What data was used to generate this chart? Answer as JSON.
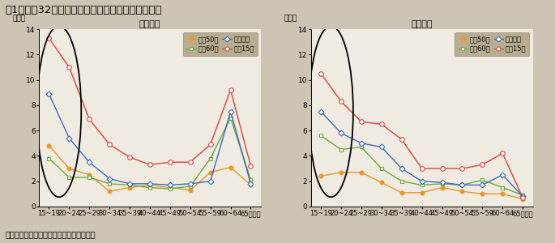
{
  "title": "第1－序－32図　年齢階級別完全失業率の年次推移",
  "note": "（備考）総務省「労働力調査」より作成。",
  "x_labels": [
    "15~19",
    "20~24",
    "25~29",
    "30~34",
    "35~39",
    "40~44",
    "45~49",
    "50~54",
    "55~59",
    "60~64",
    "65歳以上"
  ],
  "male_subtitle": "（男性）",
  "female_subtitle": "（女性）",
  "ylabel": "（％）",
  "ylim": [
    0,
    14
  ],
  "yticks": [
    0,
    2,
    4,
    6,
    8,
    10,
    12,
    14
  ],
  "legend_labels": [
    "昭和50年",
    "昭和60年",
    "平成７年",
    "平成15年"
  ],
  "male": {
    "showa50": [
      4.8,
      3.0,
      2.5,
      1.2,
      1.5,
      1.7,
      1.5,
      1.3,
      2.7,
      3.1,
      1.7
    ],
    "showa60": [
      3.8,
      2.3,
      2.3,
      1.8,
      1.7,
      1.5,
      1.4,
      1.6,
      3.8,
      7.0,
      2.1
    ],
    "heisei7": [
      8.9,
      5.4,
      3.5,
      2.2,
      1.8,
      1.8,
      1.7,
      1.8,
      2.0,
      7.5,
      1.8
    ],
    "heisei15": [
      13.3,
      11.0,
      6.9,
      4.9,
      3.9,
      3.3,
      3.5,
      3.5,
      4.9,
      9.2,
      3.2
    ]
  },
  "female": {
    "showa50": [
      2.4,
      2.7,
      2.7,
      1.9,
      1.1,
      1.1,
      1.5,
      1.2,
      1.0,
      1.0,
      0.6
    ],
    "showa60": [
      5.6,
      4.5,
      4.7,
      3.0,
      2.0,
      1.7,
      1.8,
      1.7,
      2.1,
      1.5,
      0.9
    ],
    "heisei7": [
      7.5,
      5.8,
      5.0,
      4.7,
      3.0,
      2.0,
      1.9,
      1.7,
      1.7,
      2.5,
      0.8
    ],
    "heisei15": [
      10.5,
      8.3,
      6.7,
      6.5,
      5.3,
      3.0,
      3.0,
      3.0,
      3.3,
      4.2,
      0.7
    ]
  },
  "colors": {
    "showa50": "#e8962a",
    "showa60": "#6aaa38",
    "heisei7": "#3a6abf",
    "heisei15": "#d94040"
  },
  "bg_color": "#ccc4b4",
  "plot_bg_color": "#f0ebe0",
  "legend_bg_color": "#b8ad90",
  "title_fontsize": 9.5,
  "subtitle_fontsize": 8,
  "axis_fontsize": 6.5,
  "label_fontsize": 6.5,
  "note_fontsize": 7
}
